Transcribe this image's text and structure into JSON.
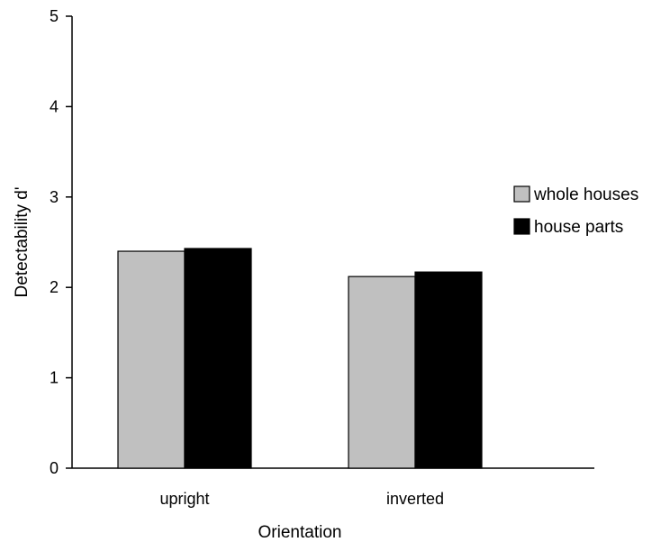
{
  "chart_data": {
    "type": "bar",
    "title": "",
    "xlabel": "Orientation",
    "ylabel": "Detectability d'",
    "categories": [
      "upright",
      "inverted"
    ],
    "series": [
      {
        "name": "whole houses",
        "values": [
          2.4,
          2.12
        ],
        "color": "#c0c0c0"
      },
      {
        "name": "house parts",
        "values": [
          2.43,
          2.17
        ],
        "color": "#000000"
      }
    ],
    "ylim": [
      0,
      5
    ],
    "yticks": [
      "0",
      "1",
      "2",
      "3",
      "4",
      "5"
    ],
    "grid": false,
    "legend_position": "right"
  }
}
